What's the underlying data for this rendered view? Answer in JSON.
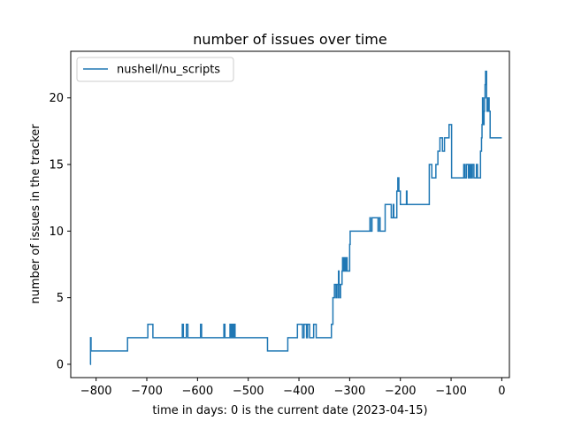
{
  "chart_data": {
    "type": "line",
    "title": "number of issues over time",
    "xlabel": "time in days: 0 is the current date (2023-04-15)",
    "ylabel": "number of issues in the tracker",
    "xlim": [
      -850,
      15
    ],
    "ylim": [
      -1,
      23.5
    ],
    "xticks": [
      -800,
      -700,
      -600,
      -500,
      -400,
      -300,
      -200,
      -100,
      0
    ],
    "xtick_labels": [
      "−800",
      "−700",
      "−600",
      "−500",
      "−400",
      "−300",
      "−200",
      "−100",
      "0"
    ],
    "yticks": [
      0,
      5,
      10,
      15,
      20
    ],
    "ytick_labels": [
      "0",
      "5",
      "10",
      "15",
      "20"
    ],
    "grid": false,
    "legend_position": "top-left",
    "series": [
      {
        "name": "nushell/nu_scripts",
        "color": "#1f77b4",
        "step": true,
        "x": [
          -812,
          -811,
          -810,
          -738,
          -698,
          -688,
          -630,
          -628,
          -622,
          -619,
          -594,
          -592,
          -548,
          -546,
          -536,
          -534,
          -532,
          -530,
          -528,
          -526,
          -462,
          -422,
          -403,
          -393,
          -390,
          -385,
          -383,
          -379,
          -371,
          -366,
          -336,
          -333,
          -330,
          -327,
          -326,
          -323,
          -322,
          -321,
          -319,
          -318,
          -315,
          -314,
          -313,
          -311,
          -310,
          -309,
          -307,
          -306,
          -305,
          -300,
          -299,
          -298,
          -296,
          -290,
          -287,
          -286,
          -284,
          -281,
          -280,
          -275,
          -264,
          -260,
          -259,
          -256,
          -244,
          -243,
          -240,
          -230,
          -225,
          -221,
          -218,
          -214,
          -213,
          -207,
          -205,
          -203,
          -200,
          -188,
          -187,
          -150,
          -143,
          -138,
          -133,
          -130,
          -126,
          -122,
          -117,
          -113,
          -109,
          -104,
          -99,
          -96,
          -94,
          -92,
          -90,
          -75,
          -73,
          -70,
          -66,
          -65,
          -63,
          -62,
          -60,
          -58,
          -55,
          -50,
          -48,
          -42,
          -40,
          -39,
          -38,
          -37,
          -35,
          -34,
          -33,
          -32,
          -30,
          -29,
          -28,
          -27,
          -26,
          -25,
          -23,
          -20,
          -16,
          0
        ],
        "y": [
          0,
          2,
          1,
          2,
          3,
          2,
          3,
          2,
          3,
          2,
          3,
          2,
          3,
          2,
          3,
          2,
          3,
          2,
          3,
          2,
          1,
          2,
          3,
          2,
          3,
          2,
          3,
          2,
          3,
          2,
          3,
          5,
          6,
          5,
          6,
          5,
          7,
          6,
          5,
          6,
          7,
          8,
          7,
          8,
          7,
          8,
          7,
          8,
          7,
          9,
          10,
          10,
          10,
          10,
          10,
          10,
          10,
          10,
          10,
          10,
          10,
          11,
          10,
          11,
          10,
          11,
          10,
          12,
          12,
          12,
          11,
          12,
          11,
          13,
          14,
          13,
          12,
          13,
          12,
          12,
          15,
          14,
          14,
          15,
          16,
          17,
          16,
          17,
          17,
          18,
          14,
          14,
          14,
          14,
          14,
          15,
          14,
          15,
          14,
          15,
          14,
          15,
          14,
          15,
          14,
          15,
          14,
          16,
          17,
          18,
          20,
          18,
          19,
          20,
          21,
          22,
          20,
          19,
          20,
          19,
          20,
          19,
          17,
          17,
          17,
          17
        ]
      }
    ]
  }
}
